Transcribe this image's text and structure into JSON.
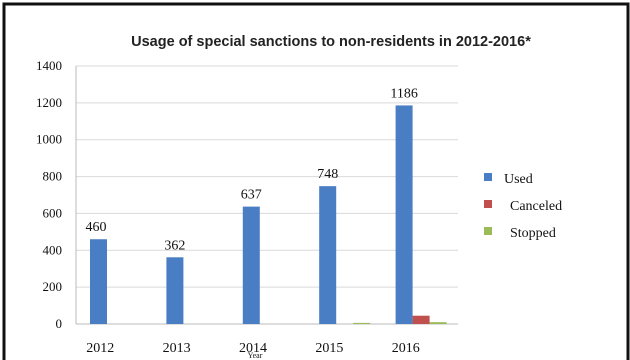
{
  "chart_data": {
    "type": "bar",
    "title": "Usage of special sanctions to non-residents in 2012-2016*",
    "xlabel": "Year",
    "ylabel": "",
    "categories": [
      "2012",
      "2013",
      "2014",
      "2015",
      "2016"
    ],
    "ylim": [
      0,
      1400
    ],
    "yticks": [
      0,
      200,
      400,
      600,
      800,
      1000,
      1200,
      1400
    ],
    "grid": "horizontal",
    "legend_position": "right",
    "series": [
      {
        "name": "Used",
        "color": "#4a7ec4",
        "values": [
          460,
          362,
          637,
          748,
          1186
        ],
        "data_labels": [
          "460",
          "362",
          "637",
          "748",
          "1186"
        ]
      },
      {
        "name": "Canceled",
        "color": "#c0504d",
        "values": [
          0,
          0,
          0,
          0,
          45
        ]
      },
      {
        "name": "Stopped",
        "color": "#9bbb59",
        "values": [
          0,
          0,
          0,
          6,
          10
        ]
      }
    ]
  }
}
